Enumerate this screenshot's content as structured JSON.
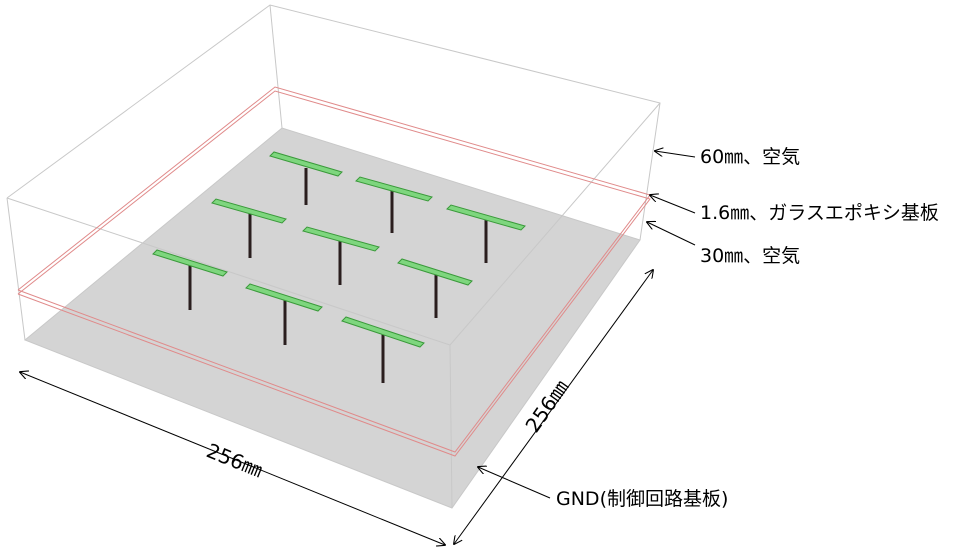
{
  "layers": {
    "top_air": "60㎜、空気",
    "substrate": "1.6㎜、ガラスエポキシ基板",
    "bottom_air": "30㎜、空気",
    "gnd": "GND(制御回路基板)"
  },
  "dimensions": {
    "front": "256㎜",
    "side": "256㎜"
  },
  "colors": {
    "gnd_fill": "#d4d4d4",
    "box_edge": "#c8c8c8",
    "substrate_edge": "#e08a8a",
    "antenna_green": "#7ed67e",
    "antenna_post": "#2a1e1e"
  },
  "antennas": {
    "count": 9,
    "rows": 3,
    "columns": 3
  }
}
